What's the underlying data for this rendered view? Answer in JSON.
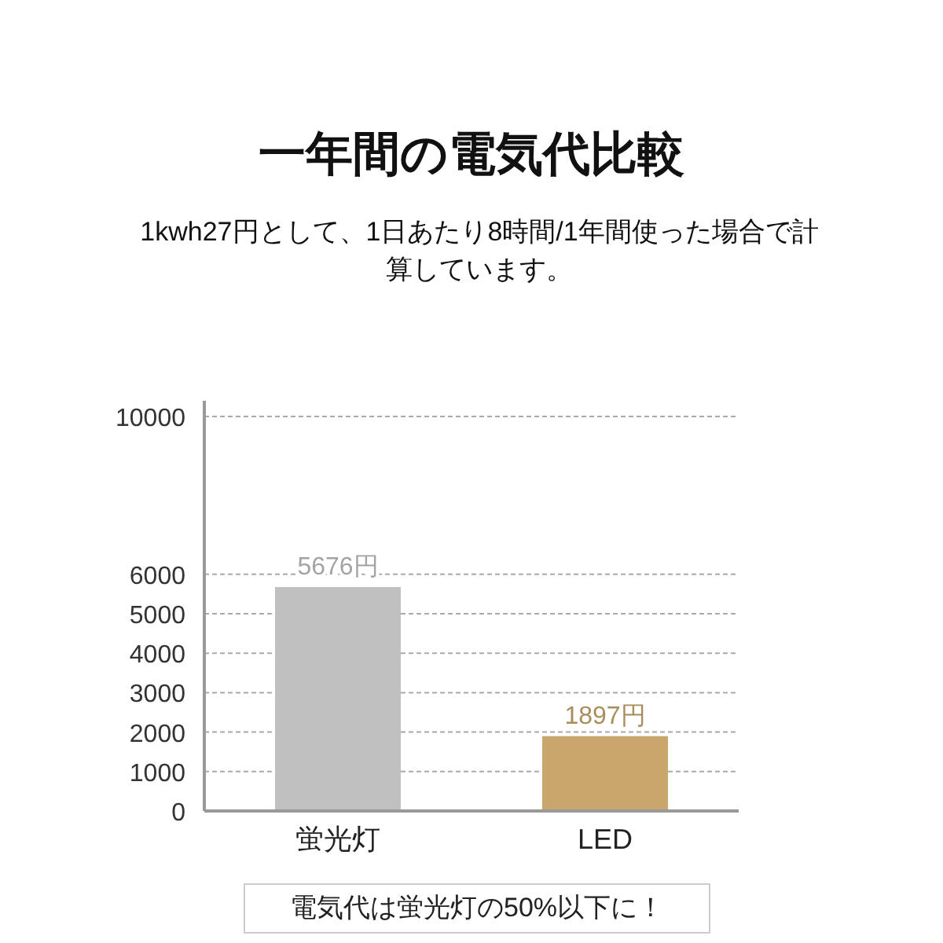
{
  "chart_data": {
    "type": "bar",
    "title": "一年間の電気代比較",
    "subtitle": "1kwh27円として、1日あたり8時間/1年間使った場合で計算しています。",
    "categories": [
      "蛍光灯",
      "LED"
    ],
    "values": [
      5676,
      1897
    ],
    "colors": [
      "#c0c0c0",
      "#c8a66c"
    ],
    "value_labels": [
      "5676円",
      "1897円"
    ],
    "ylim": [
      0,
      10000
    ],
    "yticks": [
      0,
      1000,
      2000,
      3000,
      4000,
      5000,
      6000,
      10000
    ],
    "grid": "y",
    "annotations": [
      "電気代は蛍光灯の50%以下に！"
    ]
  }
}
